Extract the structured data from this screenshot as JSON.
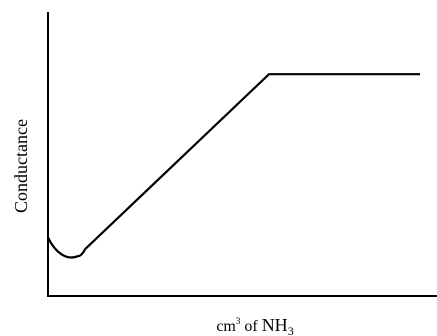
{
  "chart_data": {
    "type": "line",
    "title": "",
    "xlabel": {
      "parts": [
        "cm",
        "3",
        " of ",
        "NH",
        "3"
      ]
    },
    "ylabel": "Conductance",
    "grid": false,
    "ticks_shown": false,
    "xlim": [
      0,
      10
    ],
    "ylim": [
      0,
      10
    ],
    "series": [
      {
        "color": "#000000",
        "x": [
          0.0,
          0.2,
          0.5,
          0.8,
          1.0,
          5.94,
          10.0
        ],
        "y": [
          2.06,
          1.52,
          1.38,
          1.4,
          1.65,
          7.81,
          7.81
        ]
      }
    ]
  }
}
